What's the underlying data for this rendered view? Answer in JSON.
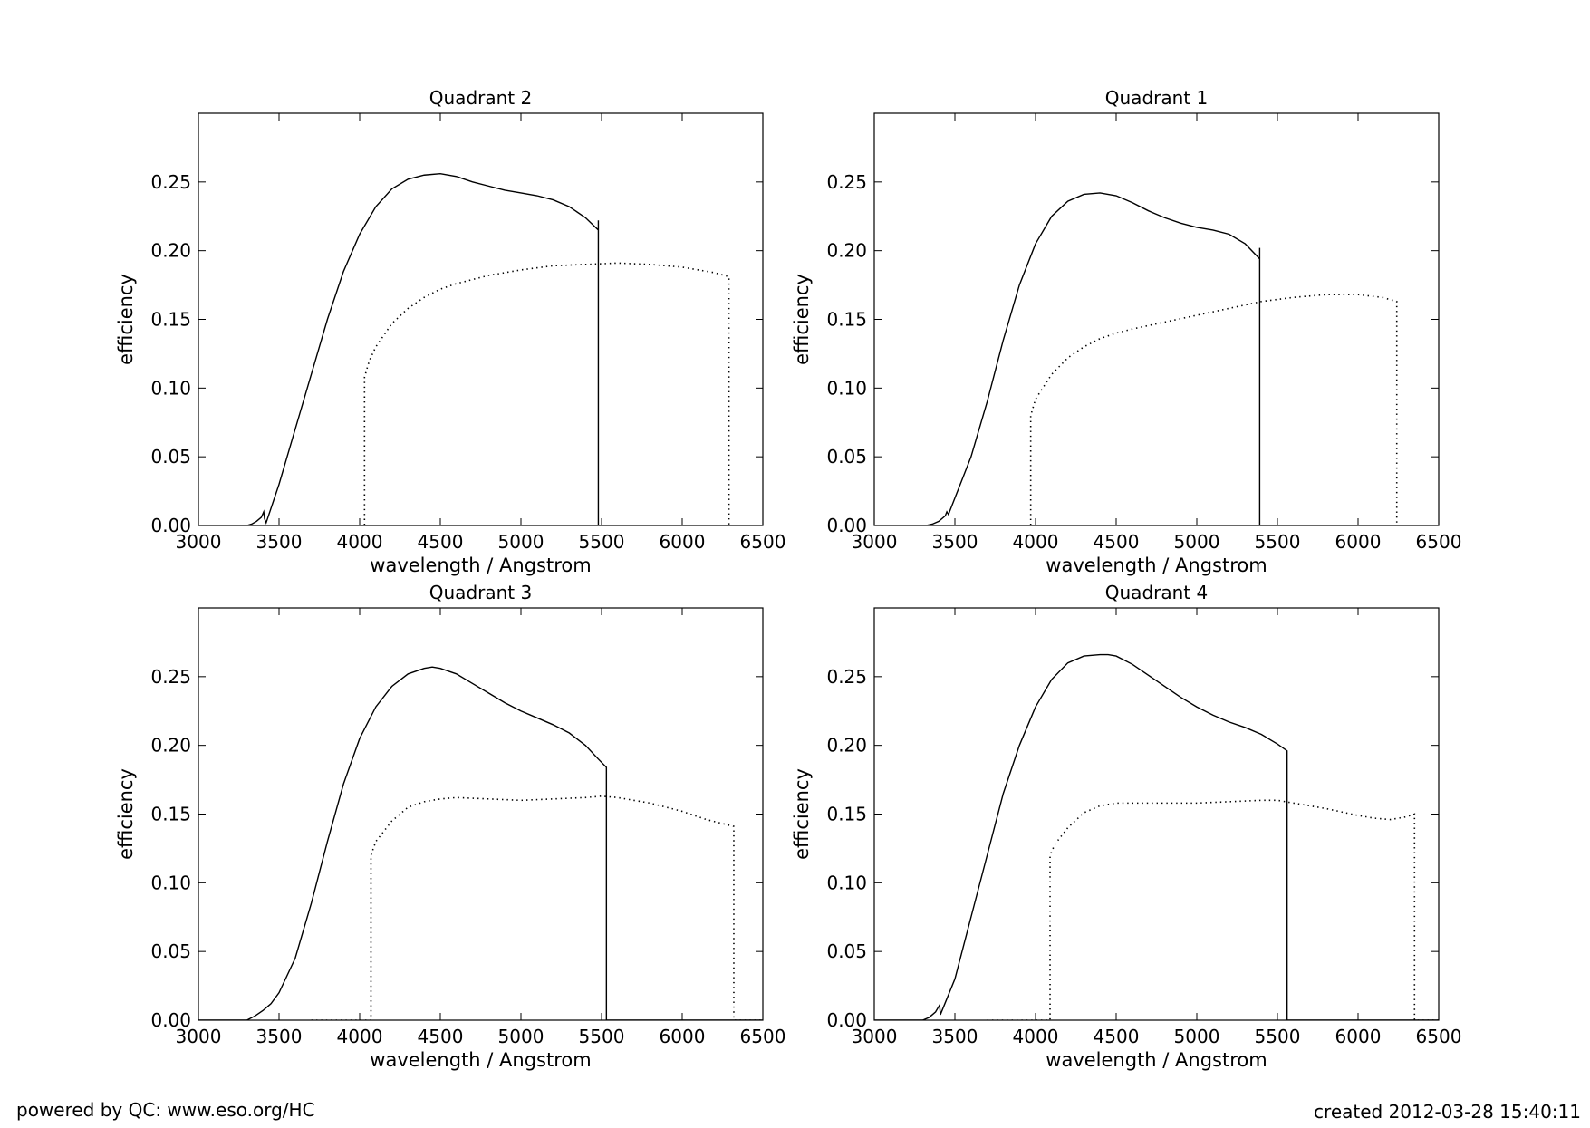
{
  "footer": {
    "left": "powered by QC: www.eso.org/HC",
    "right": "created 2012-03-28 15:40:11"
  },
  "chart_data": [
    {
      "type": "line",
      "title": "Quadrant 2",
      "xlabel": "wavelength / Angstrom",
      "ylabel": "efficiency",
      "xlim": [
        3000,
        6500
      ],
      "ylim": [
        0,
        0.3
      ],
      "xticks": [
        3000,
        3500,
        4000,
        4500,
        5000,
        5500,
        6000,
        6500
      ],
      "xtick_labels": [
        "3000",
        "3500",
        "4000",
        "4500",
        "5000",
        "5500",
        "6000",
        "6500"
      ],
      "yticks": [
        0,
        0.05,
        0.1,
        0.15,
        0.2,
        0.25
      ],
      "ytick_labels": [
        "0.00",
        "0.05",
        "0.10",
        "0.15",
        "0.20",
        "0.25"
      ],
      "grid": false,
      "series": [
        {
          "style": "solid",
          "x": [
            3000,
            3300,
            3330,
            3360,
            3390,
            3405,
            3410,
            3420,
            3500,
            3600,
            3700,
            3800,
            3900,
            4000,
            4100,
            4200,
            4300,
            4400,
            4500,
            4600,
            4700,
            4800,
            4900,
            5000,
            5100,
            5200,
            5300,
            5400,
            5480,
            5480,
            5480,
            5480,
            6500
          ],
          "y": [
            0,
            0,
            0.001,
            0.003,
            0.006,
            0.01,
            0.005,
            0.002,
            0.03,
            0.07,
            0.11,
            0.15,
            0.185,
            0.212,
            0.232,
            0.245,
            0.252,
            0.255,
            0.256,
            0.254,
            0.25,
            0.247,
            0.244,
            0.242,
            0.24,
            0.237,
            0.232,
            0.224,
            0.215,
            0.222,
            0.215,
            0,
            0
          ]
        },
        {
          "style": "dotted",
          "x": [
            3700,
            4030,
            4030,
            4060,
            4100,
            4200,
            4300,
            4400,
            4500,
            4600,
            4800,
            5000,
            5200,
            5400,
            5600,
            5800,
            6000,
            6200,
            6290,
            6290,
            6500
          ],
          "y": [
            0,
            0,
            0.108,
            0.12,
            0.13,
            0.147,
            0.158,
            0.166,
            0.172,
            0.176,
            0.182,
            0.186,
            0.189,
            0.19,
            0.191,
            0.19,
            0.188,
            0.184,
            0.181,
            0,
            0
          ]
        }
      ]
    },
    {
      "type": "line",
      "title": "Quadrant 1",
      "xlabel": "wavelength / Angstrom",
      "ylabel": "efficiency",
      "xlim": [
        3000,
        6500
      ],
      "ylim": [
        0,
        0.3
      ],
      "xticks": [
        3000,
        3500,
        4000,
        4500,
        5000,
        5500,
        6000,
        6500
      ],
      "xtick_labels": [
        "3000",
        "3500",
        "4000",
        "4500",
        "5000",
        "5500",
        "6000",
        "6500"
      ],
      "yticks": [
        0,
        0.05,
        0.1,
        0.15,
        0.2,
        0.25
      ],
      "ytick_labels": [
        "0.00",
        "0.05",
        "0.10",
        "0.15",
        "0.20",
        "0.25"
      ],
      "grid": false,
      "series": [
        {
          "style": "solid",
          "x": [
            3000,
            3320,
            3360,
            3400,
            3440,
            3450,
            3460,
            3500,
            3600,
            3700,
            3800,
            3900,
            4000,
            4100,
            4200,
            4300,
            4400,
            4500,
            4600,
            4700,
            4800,
            4900,
            5000,
            5100,
            5200,
            5300,
            5390,
            5390,
            5390,
            5390,
            6500
          ],
          "y": [
            0,
            0,
            0.001,
            0.003,
            0.007,
            0.01,
            0.008,
            0.02,
            0.05,
            0.09,
            0.135,
            0.175,
            0.205,
            0.225,
            0.236,
            0.241,
            0.242,
            0.24,
            0.235,
            0.229,
            0.224,
            0.22,
            0.217,
            0.215,
            0.212,
            0.205,
            0.194,
            0.202,
            0.194,
            0,
            0
          ]
        },
        {
          "style": "dotted",
          "x": [
            3700,
            3970,
            3970,
            4000,
            4100,
            4200,
            4300,
            4400,
            4500,
            4600,
            4800,
            5000,
            5200,
            5400,
            5600,
            5800,
            6000,
            6150,
            6240,
            6240,
            6500
          ],
          "y": [
            0,
            0,
            0.08,
            0.092,
            0.11,
            0.122,
            0.13,
            0.136,
            0.14,
            0.143,
            0.148,
            0.153,
            0.158,
            0.163,
            0.166,
            0.168,
            0.168,
            0.166,
            0.163,
            0,
            0
          ]
        }
      ]
    },
    {
      "type": "line",
      "title": "Quadrant 3",
      "xlabel": "wavelength / Angstrom",
      "ylabel": "efficiency",
      "xlim": [
        3000,
        6500
      ],
      "ylim": [
        0,
        0.3
      ],
      "xticks": [
        3000,
        3500,
        4000,
        4500,
        5000,
        5500,
        6000,
        6500
      ],
      "xtick_labels": [
        "3000",
        "3500",
        "4000",
        "4500",
        "5000",
        "5500",
        "6000",
        "6500"
      ],
      "yticks": [
        0,
        0.05,
        0.1,
        0.15,
        0.2,
        0.25
      ],
      "ytick_labels": [
        "0.00",
        "0.05",
        "0.10",
        "0.15",
        "0.20",
        "0.25"
      ],
      "grid": false,
      "series": [
        {
          "style": "solid",
          "x": [
            3000,
            3300,
            3350,
            3400,
            3430,
            3450,
            3500,
            3600,
            3700,
            3800,
            3900,
            4000,
            4100,
            4200,
            4300,
            4400,
            4450,
            4500,
            4600,
            4700,
            4800,
            4900,
            5000,
            5100,
            5200,
            5300,
            5400,
            5480,
            5530,
            5530,
            6500
          ],
          "y": [
            0,
            0,
            0.003,
            0.007,
            0.01,
            0.012,
            0.02,
            0.045,
            0.085,
            0.13,
            0.172,
            0.205,
            0.228,
            0.243,
            0.252,
            0.256,
            0.257,
            0.256,
            0.252,
            0.245,
            0.238,
            0.231,
            0.225,
            0.22,
            0.215,
            0.209,
            0.2,
            0.19,
            0.184,
            0,
            0
          ]
        },
        {
          "style": "dotted",
          "x": [
            3700,
            4070,
            4070,
            4100,
            4200,
            4300,
            4400,
            4500,
            4600,
            4800,
            5000,
            5200,
            5400,
            5500,
            5600,
            5800,
            6000,
            6150,
            6320,
            6320,
            6500
          ],
          "y": [
            0,
            0,
            0.12,
            0.13,
            0.145,
            0.155,
            0.159,
            0.161,
            0.162,
            0.161,
            0.16,
            0.161,
            0.162,
            0.163,
            0.162,
            0.158,
            0.152,
            0.146,
            0.141,
            0,
            0
          ]
        }
      ]
    },
    {
      "type": "line",
      "title": "Quadrant 4",
      "xlabel": "wavelength / Angstrom",
      "ylabel": "efficiency",
      "xlim": [
        3000,
        6500
      ],
      "ylim": [
        0,
        0.3
      ],
      "xticks": [
        3000,
        3500,
        4000,
        4500,
        5000,
        5500,
        6000,
        6500
      ],
      "xtick_labels": [
        "3000",
        "3500",
        "4000",
        "4500",
        "5000",
        "5500",
        "6000",
        "6500"
      ],
      "yticks": [
        0,
        0.05,
        0.1,
        0.15,
        0.2,
        0.25
      ],
      "ytick_labels": [
        "0.00",
        "0.05",
        "0.10",
        "0.15",
        "0.20",
        "0.25"
      ],
      "grid": false,
      "series": [
        {
          "style": "solid",
          "x": [
            3000,
            3300,
            3340,
            3380,
            3400,
            3405,
            3410,
            3500,
            3600,
            3700,
            3800,
            3900,
            4000,
            4100,
            4200,
            4300,
            4400,
            4450,
            4500,
            4600,
            4700,
            4800,
            4900,
            5000,
            5100,
            5200,
            5300,
            5400,
            5500,
            5560,
            5560,
            6500
          ],
          "y": [
            0,
            0,
            0.002,
            0.006,
            0.01,
            0.011,
            0.004,
            0.03,
            0.075,
            0.12,
            0.165,
            0.2,
            0.228,
            0.248,
            0.26,
            0.265,
            0.266,
            0.266,
            0.265,
            0.259,
            0.251,
            0.243,
            0.235,
            0.228,
            0.222,
            0.217,
            0.213,
            0.208,
            0.201,
            0.196,
            0,
            0
          ]
        },
        {
          "style": "dotted",
          "x": [
            3700,
            4090,
            4090,
            4120,
            4200,
            4300,
            4400,
            4500,
            4600,
            4800,
            5000,
            5200,
            5400,
            5500,
            5600,
            5800,
            6000,
            6100,
            6200,
            6300,
            6350,
            6350,
            6500
          ],
          "y": [
            0,
            0,
            0.12,
            0.128,
            0.14,
            0.151,
            0.156,
            0.158,
            0.158,
            0.158,
            0.158,
            0.159,
            0.16,
            0.16,
            0.158,
            0.154,
            0.149,
            0.147,
            0.146,
            0.148,
            0.15,
            0,
            0
          ]
        }
      ]
    }
  ]
}
